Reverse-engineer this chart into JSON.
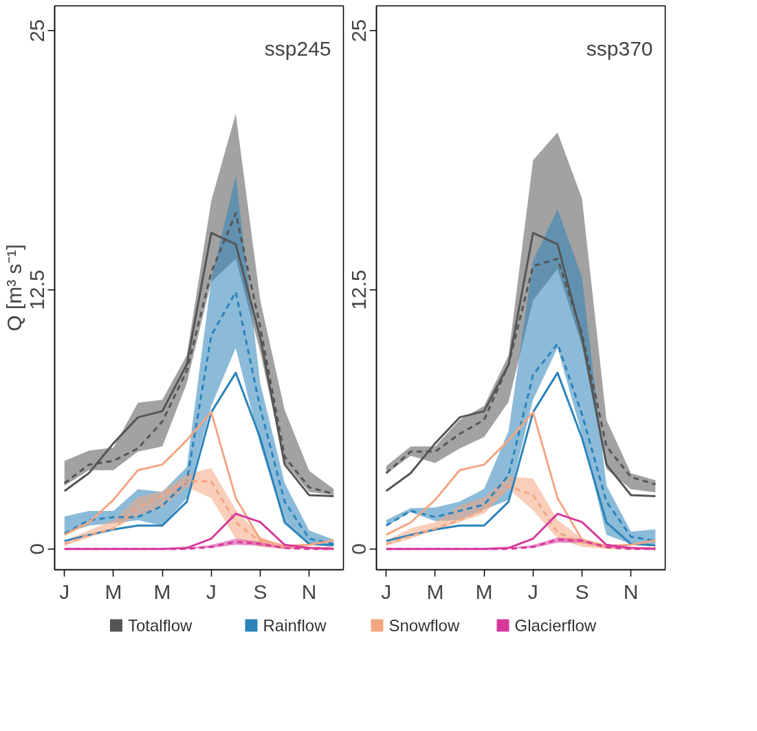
{
  "chart_data": [
    {
      "type": "line",
      "ylabel": "Q [m³ s⁻¹]",
      "annotations": [
        "ssp245"
      ],
      "legend": "bottom",
      "categories": [
        "J",
        null,
        "M",
        null,
        "M",
        null,
        "J",
        null,
        "S",
        null,
        "N",
        null
      ],
      "ylim": [
        -1,
        26.2
      ],
      "yticks": [
        0,
        12.5,
        25
      ],
      "series": [
        {
          "color": "#555555",
          "line_style": "solid",
          "values": [
            2.8,
            3.66,
            5.1,
            6.35,
            6.65,
            8.9,
            15.25,
            14.7,
            10.2,
            4.07,
            2.6,
            2.55
          ]
        },
        {
          "name": "Totalflow",
          "color": "#555555",
          "line_style": "dashed",
          "values": [
            3.17,
            4.07,
            4.25,
            4.85,
            6.15,
            8.6,
            13.35,
            16.2,
            10.7,
            4.45,
            2.97,
            2.67
          ],
          "lower": [
            3.05,
            3.8,
            3.8,
            4.7,
            4.95,
            8.0,
            12.9,
            14.0,
            9.5,
            4.15,
            2.75,
            2.6
          ],
          "upper": [
            4.25,
            4.75,
            4.9,
            7.05,
            7.2,
            9.35,
            16.8,
            21.0,
            12.0,
            6.7,
            3.77,
            2.9
          ]
        },
        {
          "color": "#2b83ba",
          "line_style": "solid",
          "values": [
            0.39,
            0.68,
            0.94,
            1.13,
            1.13,
            2.28,
            6.6,
            8.5,
            5.35,
            1.28,
            0.24,
            0.18
          ]
        },
        {
          "name": "Rainflow",
          "color": "#2b83ba",
          "line_style": "dashed",
          "values": [
            0.74,
            1.39,
            1.54,
            1.54,
            2.08,
            3.26,
            10.3,
            12.4,
            6.8,
            2.28,
            0.5,
            0.24
          ],
          "lower": [
            0.74,
            1.13,
            1.25,
            1.39,
            1.13,
            2.46,
            6.9,
            9.7,
            5.0,
            1.28,
            0.26,
            0.2
          ],
          "upper": [
            1.57,
            1.84,
            1.84,
            2.88,
            2.76,
            3.95,
            13.0,
            18.0,
            8.0,
            3.18,
            0.89,
            0.45
          ]
        },
        {
          "color": "#f4a582",
          "line_style": "solid",
          "values": [
            0.69,
            1.28,
            2.37,
            3.8,
            4.07,
            5.25,
            6.6,
            2.46,
            0.45,
            0.15,
            0.2,
            0.42
          ]
        },
        {
          "name": "Snowflow",
          "color": "#f4a582",
          "line_style": "dashed",
          "values": [
            0.24,
            0.69,
            0.98,
            2.0,
            2.58,
            3.26,
            3.26,
            1.28,
            0.35,
            0.06,
            0.06,
            0.06
          ],
          "lower": [
            0.15,
            0.55,
            0.98,
            1.6,
            2.0,
            3.0,
            2.45,
            0.5,
            0.1,
            0.0,
            0.0,
            0.0
          ],
          "upper": [
            0.4,
            0.9,
            1.4,
            2.5,
            2.8,
            3.6,
            3.9,
            1.9,
            0.6,
            0.1,
            0.1,
            0.1
          ]
        },
        {
          "color": "#d7399b",
          "line_style": "solid",
          "values": [
            0,
            0,
            0,
            0,
            0,
            0.05,
            0.5,
            1.7,
            1.3,
            0.2,
            0.05,
            0
          ]
        },
        {
          "name": "Glacierflow",
          "color": "#d7399b",
          "line_style": "dashed",
          "values": [
            0,
            0,
            0,
            0,
            0,
            0,
            0.1,
            0.35,
            0.25,
            0.05,
            0,
            0
          ],
          "lower": [
            0,
            0,
            0,
            0,
            0,
            0,
            0.05,
            0.2,
            0.15,
            0,
            0,
            0
          ],
          "upper": [
            0,
            0,
            0,
            0,
            0,
            0.05,
            0.2,
            0.5,
            0.35,
            0.1,
            0,
            0
          ]
        }
      ]
    },
    {
      "type": "line",
      "annotations": [
        "ssp370"
      ],
      "categories": [
        "J",
        null,
        "M",
        null,
        "M",
        null,
        "J",
        null,
        "S",
        null,
        "N",
        null
      ],
      "ylim": [
        -1,
        26.2
      ],
      "yticks": [
        0,
        12.5,
        25
      ],
      "series": [
        {
          "color": "#555555",
          "line_style": "solid",
          "values": [
            2.8,
            3.66,
            5.1,
            6.35,
            6.65,
            8.9,
            15.25,
            14.7,
            10.2,
            4.07,
            2.6,
            2.55
          ]
        },
        {
          "color": "#555555",
          "line_style": "dashed",
          "values": [
            3.66,
            4.7,
            4.7,
            5.55,
            6.23,
            8.9,
            13.65,
            14.0,
            10.4,
            4.95,
            3.47,
            3.12
          ],
          "lower": [
            3.62,
            4.5,
            4.15,
            4.85,
            5.4,
            7.1,
            12.0,
            13.5,
            9.8,
            3.86,
            2.88,
            2.73
          ],
          "upper": [
            4.0,
            4.95,
            4.95,
            6.23,
            6.9,
            9.35,
            18.75,
            20.1,
            16.9,
            6.23,
            3.65,
            3.32
          ]
        },
        {
          "color": "#2b83ba",
          "line_style": "solid",
          "values": [
            0.39,
            0.68,
            0.94,
            1.13,
            1.13,
            2.28,
            6.6,
            8.5,
            5.35,
            1.28,
            0.24,
            0.18
          ]
        },
        {
          "color": "#2b83ba",
          "line_style": "dashed",
          "values": [
            1.13,
            1.84,
            1.54,
            1.84,
            2.14,
            3.56,
            8.4,
            9.9,
            6.5,
            2.28,
            0.59,
            0.39
          ],
          "lower": [
            1.1,
            1.78,
            1.35,
            1.4,
            1.9,
            2.37,
            7.2,
            9.7,
            5.5,
            0.68,
            0.24,
            0.24
          ],
          "upper": [
            1.4,
            1.97,
            2.0,
            2.28,
            2.9,
            5.7,
            13.9,
            16.4,
            13.1,
            3.06,
            0.84,
            0.95
          ]
        },
        {
          "color": "#f4a582",
          "line_style": "solid",
          "values": [
            0.69,
            1.28,
            2.37,
            3.8,
            4.07,
            5.25,
            6.6,
            2.46,
            0.45,
            0.15,
            0.2,
            0.42
          ]
        },
        {
          "color": "#f4a582",
          "line_style": "dashed",
          "values": [
            0.24,
            0.63,
            0.98,
            1.4,
            1.9,
            3.03,
            2.6,
            0.8,
            0.3,
            0.06,
            0,
            0.06
          ],
          "lower": [
            0.15,
            0.5,
            0.9,
            1.3,
            1.7,
            2.9,
            1.87,
            0.5,
            0.1,
            0,
            0,
            0
          ],
          "upper": [
            0.4,
            1.0,
            1.3,
            2.1,
            2.5,
            3.5,
            3.4,
            1.4,
            0.5,
            0.15,
            0.1,
            0.1
          ]
        },
        {
          "color": "#d7399b",
          "line_style": "solid",
          "values": [
            0,
            0,
            0,
            0,
            0,
            0.05,
            0.5,
            1.7,
            1.3,
            0.2,
            0.05,
            0
          ]
        },
        {
          "color": "#d7399b",
          "line_style": "dashed",
          "values": [
            0,
            0,
            0,
            0,
            0,
            0,
            0.1,
            0.45,
            0.4,
            0.1,
            0,
            0
          ],
          "lower": [
            0,
            0,
            0,
            0,
            0,
            0,
            0.05,
            0.3,
            0.3,
            0.05,
            0,
            0
          ],
          "upper": [
            0,
            0,
            0,
            0,
            0,
            0.05,
            0.2,
            0.55,
            0.5,
            0.15,
            0,
            0
          ]
        }
      ]
    }
  ]
}
